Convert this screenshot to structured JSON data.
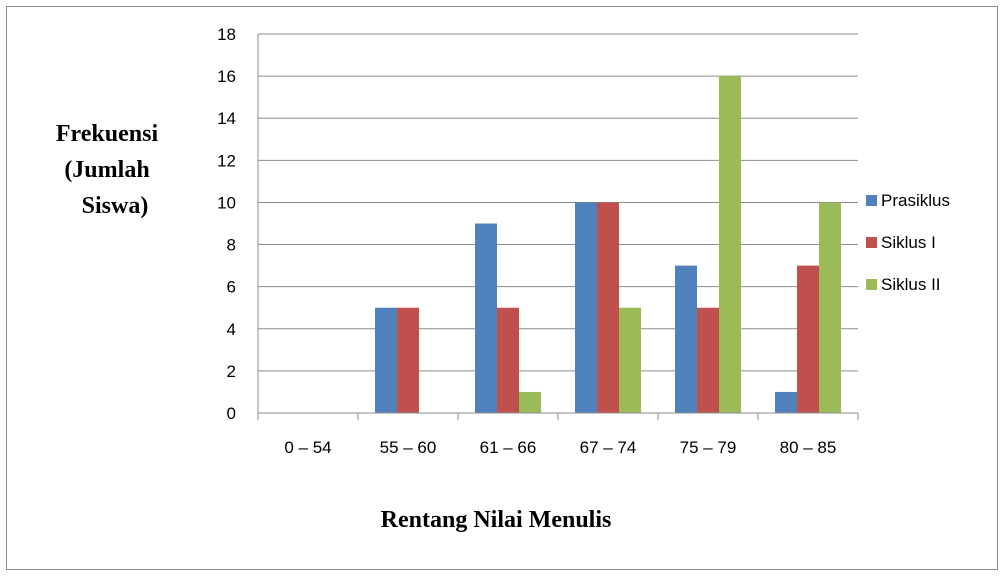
{
  "chart_data": {
    "type": "bar",
    "title": "",
    "categories": [
      "0 – 54",
      "55 – 60",
      "61 – 66",
      "67 – 74",
      "75 – 79",
      "80 – 85"
    ],
    "series": [
      {
        "name": "Prasiklus",
        "color": "#4f81bd",
        "values": [
          0,
          5,
          9,
          10,
          7,
          1
        ]
      },
      {
        "name": "Siklus I",
        "color": "#c0504d",
        "values": [
          0,
          5,
          5,
          10,
          5,
          7
        ]
      },
      {
        "name": "Siklus II",
        "color": "#9bbb59",
        "values": [
          0,
          0,
          1,
          5,
          16,
          10
        ]
      }
    ],
    "ylabel_lines": [
      "Frekuensi",
      "(Jumlah",
      "Siswa)"
    ],
    "xlabel": "Rentang Nilai Menulis",
    "ylim": [
      0,
      18
    ],
    "ytick_step": 2,
    "grid": true,
    "legend_position": "right"
  }
}
